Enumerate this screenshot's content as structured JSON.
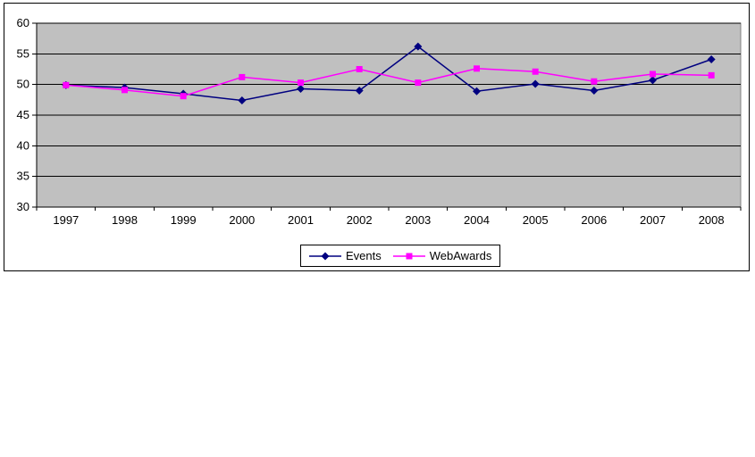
{
  "page": {
    "background": "#FFFFFF"
  },
  "chart_data": {
    "type": "line",
    "title": "",
    "xlabel": "",
    "ylabel": "",
    "categories": [
      "1997",
      "1998",
      "1999",
      "2000",
      "2001",
      "2002",
      "2003",
      "2004",
      "2005",
      "2006",
      "2007",
      "2008"
    ],
    "series": [
      {
        "name": "Events",
        "color": "#000080",
        "marker": "diamond",
        "values": [
          49.9,
          49.5,
          48.5,
          47.4,
          49.3,
          49.0,
          56.2,
          48.9,
          50.1,
          49.0,
          50.7,
          54.1
        ]
      },
      {
        "name": "WebAwards",
        "color": "#FF00FF",
        "marker": "square",
        "values": [
          49.9,
          49.1,
          48.1,
          51.2,
          50.3,
          52.5,
          50.3,
          52.6,
          52.1,
          50.5,
          51.7,
          51.5
        ]
      }
    ],
    "ylim": [
      30,
      60
    ],
    "y_ticks": [
      30,
      35,
      40,
      45,
      50,
      55,
      60
    ],
    "grid": true,
    "gridline_color": "#000000",
    "plot_background": "#C0C0C0",
    "plot_border_color": "#808080",
    "axis_color": "#000000",
    "chart_border_color": "#000000",
    "legend_position": "bottom-center",
    "legend_border": true
  }
}
